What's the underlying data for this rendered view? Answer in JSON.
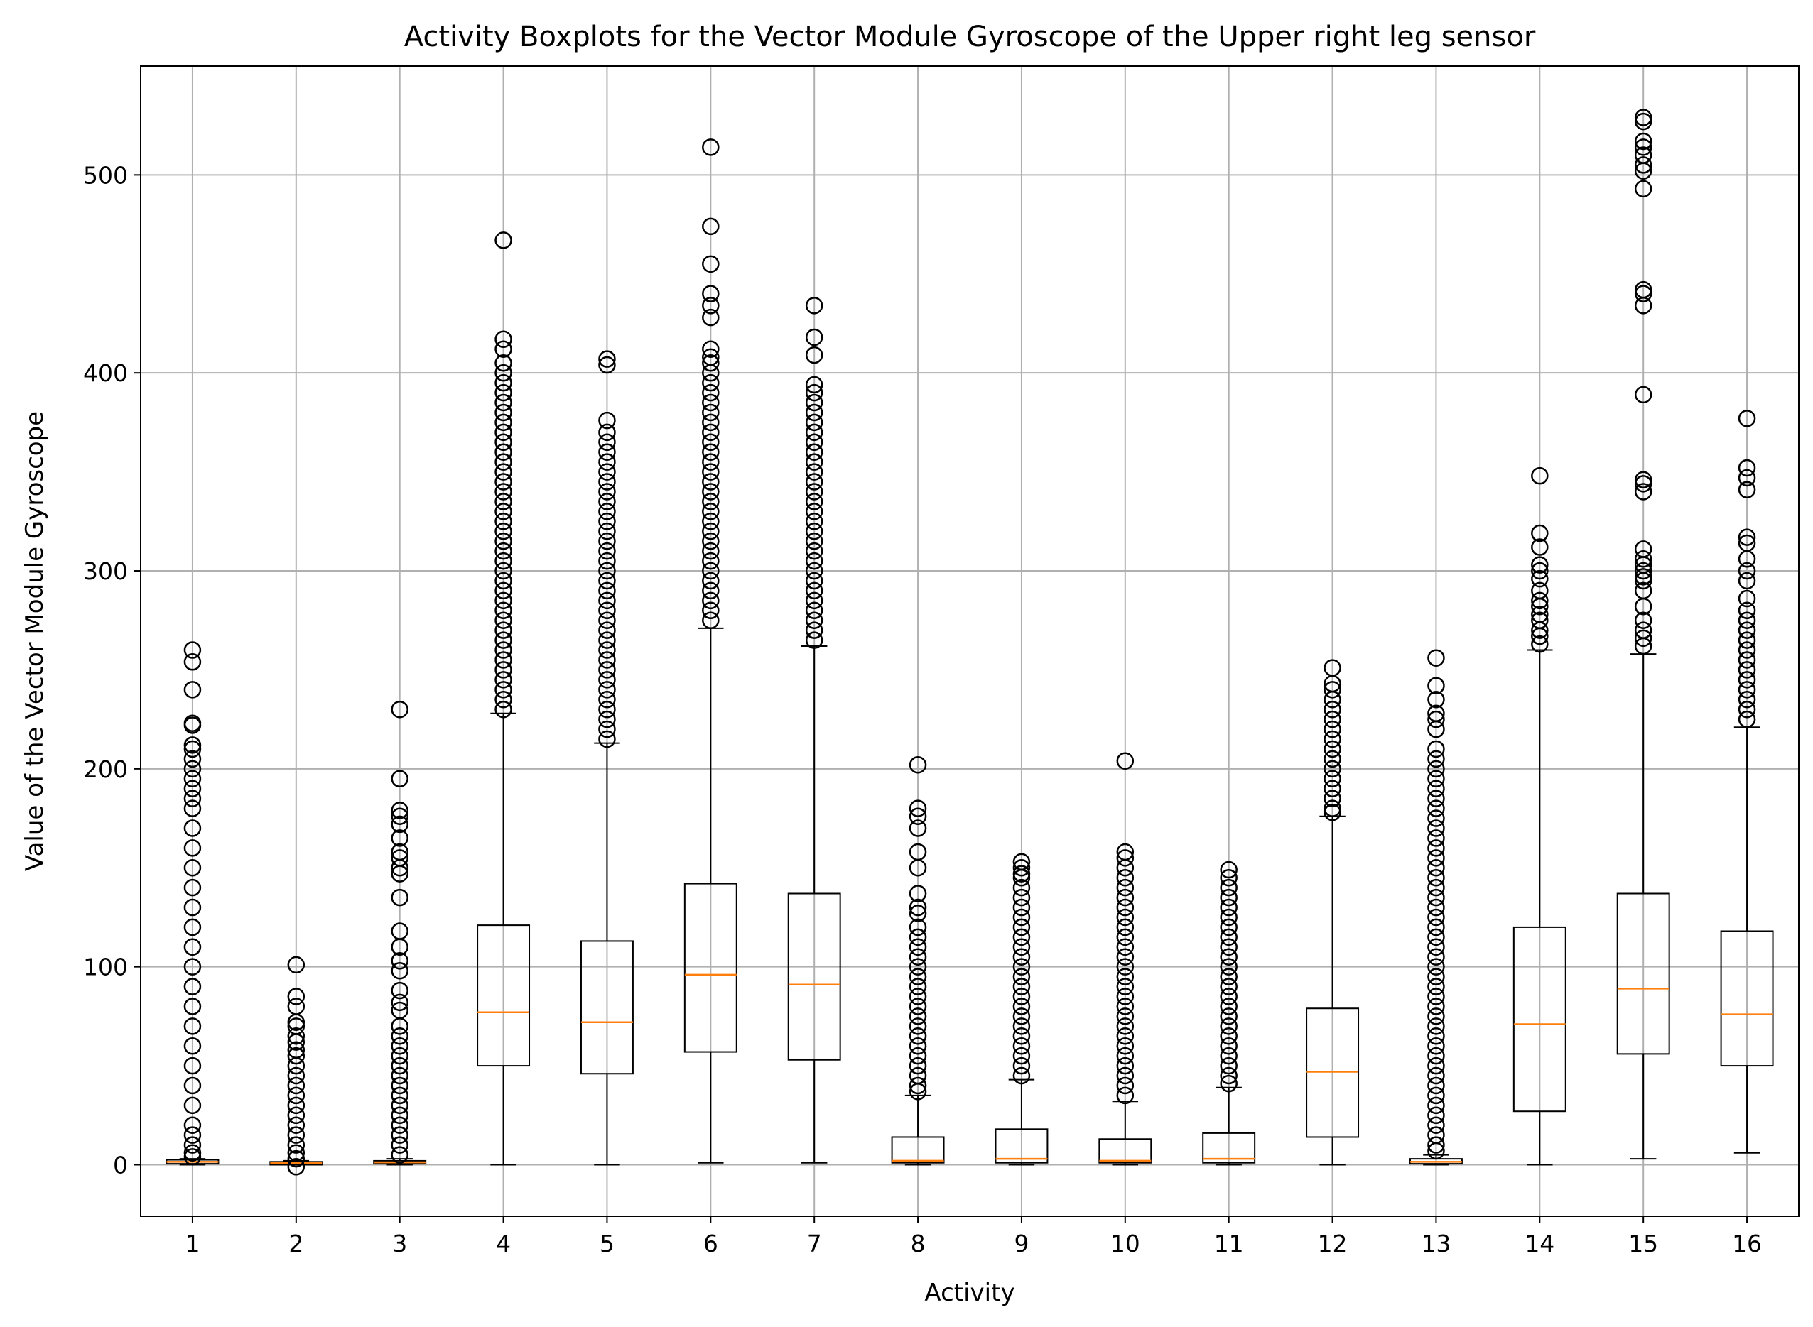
{
  "chart_data": {
    "type": "boxplot",
    "title": "Activity Boxplots for the Vector Module Gyroscope of the Upper right leg sensor",
    "xlabel": "Activity",
    "ylabel": "Value of the Vector Module Gyroscope",
    "ylim": [
      -26,
      555
    ],
    "yticks": [
      0,
      100,
      200,
      300,
      400,
      500
    ],
    "grid": true,
    "colors": {
      "box": "#000000",
      "median": "#ff7f0e",
      "grid": "#b0b0b0",
      "outlier": "#000000"
    },
    "categories": [
      "1",
      "2",
      "3",
      "4",
      "5",
      "6",
      "7",
      "8",
      "9",
      "10",
      "11",
      "12",
      "13",
      "14",
      "15",
      "16"
    ],
    "boxes": [
      {
        "label": "1",
        "whisker_low": 0,
        "q1": 0.5,
        "median": 1.5,
        "q3": 2.5,
        "whisker_high": 3,
        "outliers": [
          260,
          254,
          240,
          223,
          222,
          212,
          210,
          205,
          200,
          195,
          190,
          185,
          180,
          170,
          160,
          150,
          140,
          130,
          120,
          110,
          100,
          90,
          80,
          70,
          60,
          50,
          40,
          30,
          20,
          15,
          10,
          6,
          4
        ]
      },
      {
        "label": "2",
        "whisker_low": 0,
        "q1": 0,
        "median": 0.8,
        "q3": 1.5,
        "whisker_high": 2,
        "outliers": [
          101,
          85,
          80,
          72,
          70,
          65,
          62,
          58,
          55,
          50,
          45,
          40,
          35,
          30,
          25,
          20,
          15,
          10,
          6,
          3,
          -1
        ]
      },
      {
        "label": "3",
        "whisker_low": 0,
        "q1": 0.5,
        "median": 1.2,
        "q3": 2,
        "whisker_high": 3,
        "outliers": [
          230,
          195,
          179,
          176,
          172,
          165,
          158,
          155,
          150,
          147,
          135,
          118,
          110,
          103,
          98,
          88,
          82,
          78,
          70,
          65,
          60,
          55,
          50,
          45,
          40,
          35,
          30,
          25,
          20,
          15,
          10,
          5
        ]
      },
      {
        "label": "4",
        "whisker_low": 0,
        "q1": 50,
        "median": 77,
        "q3": 121,
        "whisker_high": 228,
        "outliers": [
          467,
          417,
          412,
          405,
          400,
          395,
          390,
          385,
          380,
          375,
          370,
          365,
          360,
          355,
          350,
          345,
          340,
          335,
          330,
          325,
          320,
          315,
          310,
          305,
          300,
          295,
          290,
          285,
          280,
          275,
          270,
          265,
          260,
          255,
          250,
          245,
          240,
          235,
          230
        ]
      },
      {
        "label": "5",
        "whisker_low": 0,
        "q1": 46,
        "median": 72,
        "q3": 113,
        "whisker_high": 213,
        "outliers": [
          407,
          404,
          376,
          370,
          365,
          360,
          355,
          350,
          345,
          340,
          335,
          330,
          325,
          320,
          315,
          310,
          305,
          300,
          295,
          290,
          285,
          280,
          275,
          270,
          265,
          260,
          255,
          250,
          245,
          240,
          235,
          230,
          225,
          220,
          215
        ]
      },
      {
        "label": "6",
        "whisker_low": 1,
        "q1": 57,
        "median": 96,
        "q3": 142,
        "whisker_high": 271,
        "outliers": [
          514,
          474,
          455,
          440,
          434,
          428,
          412,
          408,
          405,
          400,
          395,
          390,
          385,
          380,
          375,
          370,
          365,
          360,
          355,
          350,
          345,
          340,
          335,
          330,
          325,
          320,
          315,
          310,
          305,
          300,
          295,
          290,
          285,
          280,
          275
        ]
      },
      {
        "label": "7",
        "whisker_low": 1,
        "q1": 53,
        "median": 91,
        "q3": 137,
        "whisker_high": 262,
        "outliers": [
          434,
          418,
          409,
          394,
          390,
          385,
          380,
          375,
          370,
          365,
          360,
          355,
          350,
          345,
          340,
          335,
          330,
          325,
          320,
          315,
          310,
          305,
          300,
          295,
          290,
          285,
          280,
          275,
          270,
          265
        ]
      },
      {
        "label": "8",
        "whisker_low": 0,
        "q1": 1,
        "median": 2,
        "q3": 14,
        "whisker_high": 35,
        "outliers": [
          202,
          180,
          176,
          170,
          158,
          150,
          137,
          130,
          127,
          120,
          115,
          110,
          105,
          100,
          95,
          90,
          85,
          80,
          75,
          70,
          65,
          60,
          55,
          50,
          45,
          40,
          37
        ]
      },
      {
        "label": "9",
        "whisker_low": 0,
        "q1": 1,
        "median": 3,
        "q3": 18,
        "whisker_high": 43,
        "outliers": [
          153,
          150,
          147,
          145,
          140,
          135,
          130,
          125,
          120,
          115,
          110,
          105,
          100,
          95,
          90,
          85,
          80,
          75,
          70,
          65,
          60,
          55,
          50,
          45
        ]
      },
      {
        "label": "10",
        "whisker_low": 0,
        "q1": 1,
        "median": 2,
        "q3": 13,
        "whisker_high": 32,
        "outliers": [
          204,
          158,
          155,
          150,
          145,
          140,
          135,
          130,
          125,
          120,
          115,
          110,
          105,
          100,
          95,
          90,
          85,
          80,
          75,
          70,
          65,
          60,
          55,
          50,
          45,
          40,
          35
        ]
      },
      {
        "label": "11",
        "whisker_low": 0,
        "q1": 1,
        "median": 3,
        "q3": 16,
        "whisker_high": 39,
        "outliers": [
          149,
          145,
          140,
          135,
          130,
          125,
          120,
          115,
          110,
          105,
          100,
          95,
          90,
          85,
          80,
          75,
          70,
          65,
          60,
          55,
          50,
          45,
          41
        ]
      },
      {
        "label": "12",
        "whisker_low": 0,
        "q1": 14,
        "median": 47,
        "q3": 79,
        "whisker_high": 176,
        "outliers": [
          251,
          243,
          240,
          235,
          230,
          225,
          220,
          215,
          210,
          205,
          200,
          195,
          190,
          185,
          180,
          178
        ]
      },
      {
        "label": "13",
        "whisker_low": 0,
        "q1": 0.5,
        "median": 1.5,
        "q3": 3,
        "whisker_high": 5,
        "outliers": [
          256,
          242,
          235,
          228,
          225,
          220,
          210,
          205,
          200,
          195,
          190,
          185,
          180,
          175,
          170,
          165,
          160,
          155,
          150,
          145,
          140,
          135,
          130,
          125,
          120,
          115,
          110,
          105,
          100,
          95,
          90,
          85,
          80,
          75,
          70,
          65,
          60,
          55,
          50,
          45,
          40,
          35,
          30,
          25,
          20,
          15,
          10,
          7
        ]
      },
      {
        "label": "14",
        "whisker_low": 0,
        "q1": 27,
        "median": 71,
        "q3": 120,
        "whisker_high": 260,
        "outliers": [
          348,
          319,
          312,
          303,
          300,
          296,
          290,
          285,
          282,
          278,
          275,
          270,
          267,
          263
        ]
      },
      {
        "label": "15",
        "whisker_low": 3,
        "q1": 56,
        "median": 89,
        "q3": 137,
        "whisker_high": 258,
        "outliers": [
          529,
          527,
          517,
          514,
          510,
          505,
          502,
          493,
          442,
          440,
          434,
          389,
          346,
          344,
          340,
          311,
          306,
          303,
          300,
          297,
          295,
          290,
          282,
          275,
          270,
          266,
          262
        ]
      },
      {
        "label": "16",
        "whisker_low": 6,
        "q1": 50,
        "median": 76,
        "q3": 118,
        "whisker_high": 221,
        "outliers": [
          377,
          352,
          347,
          341,
          317,
          314,
          306,
          300,
          295,
          286,
          280,
          275,
          270,
          265,
          260,
          255,
          250,
          245,
          240,
          235,
          230,
          225
        ]
      }
    ]
  }
}
